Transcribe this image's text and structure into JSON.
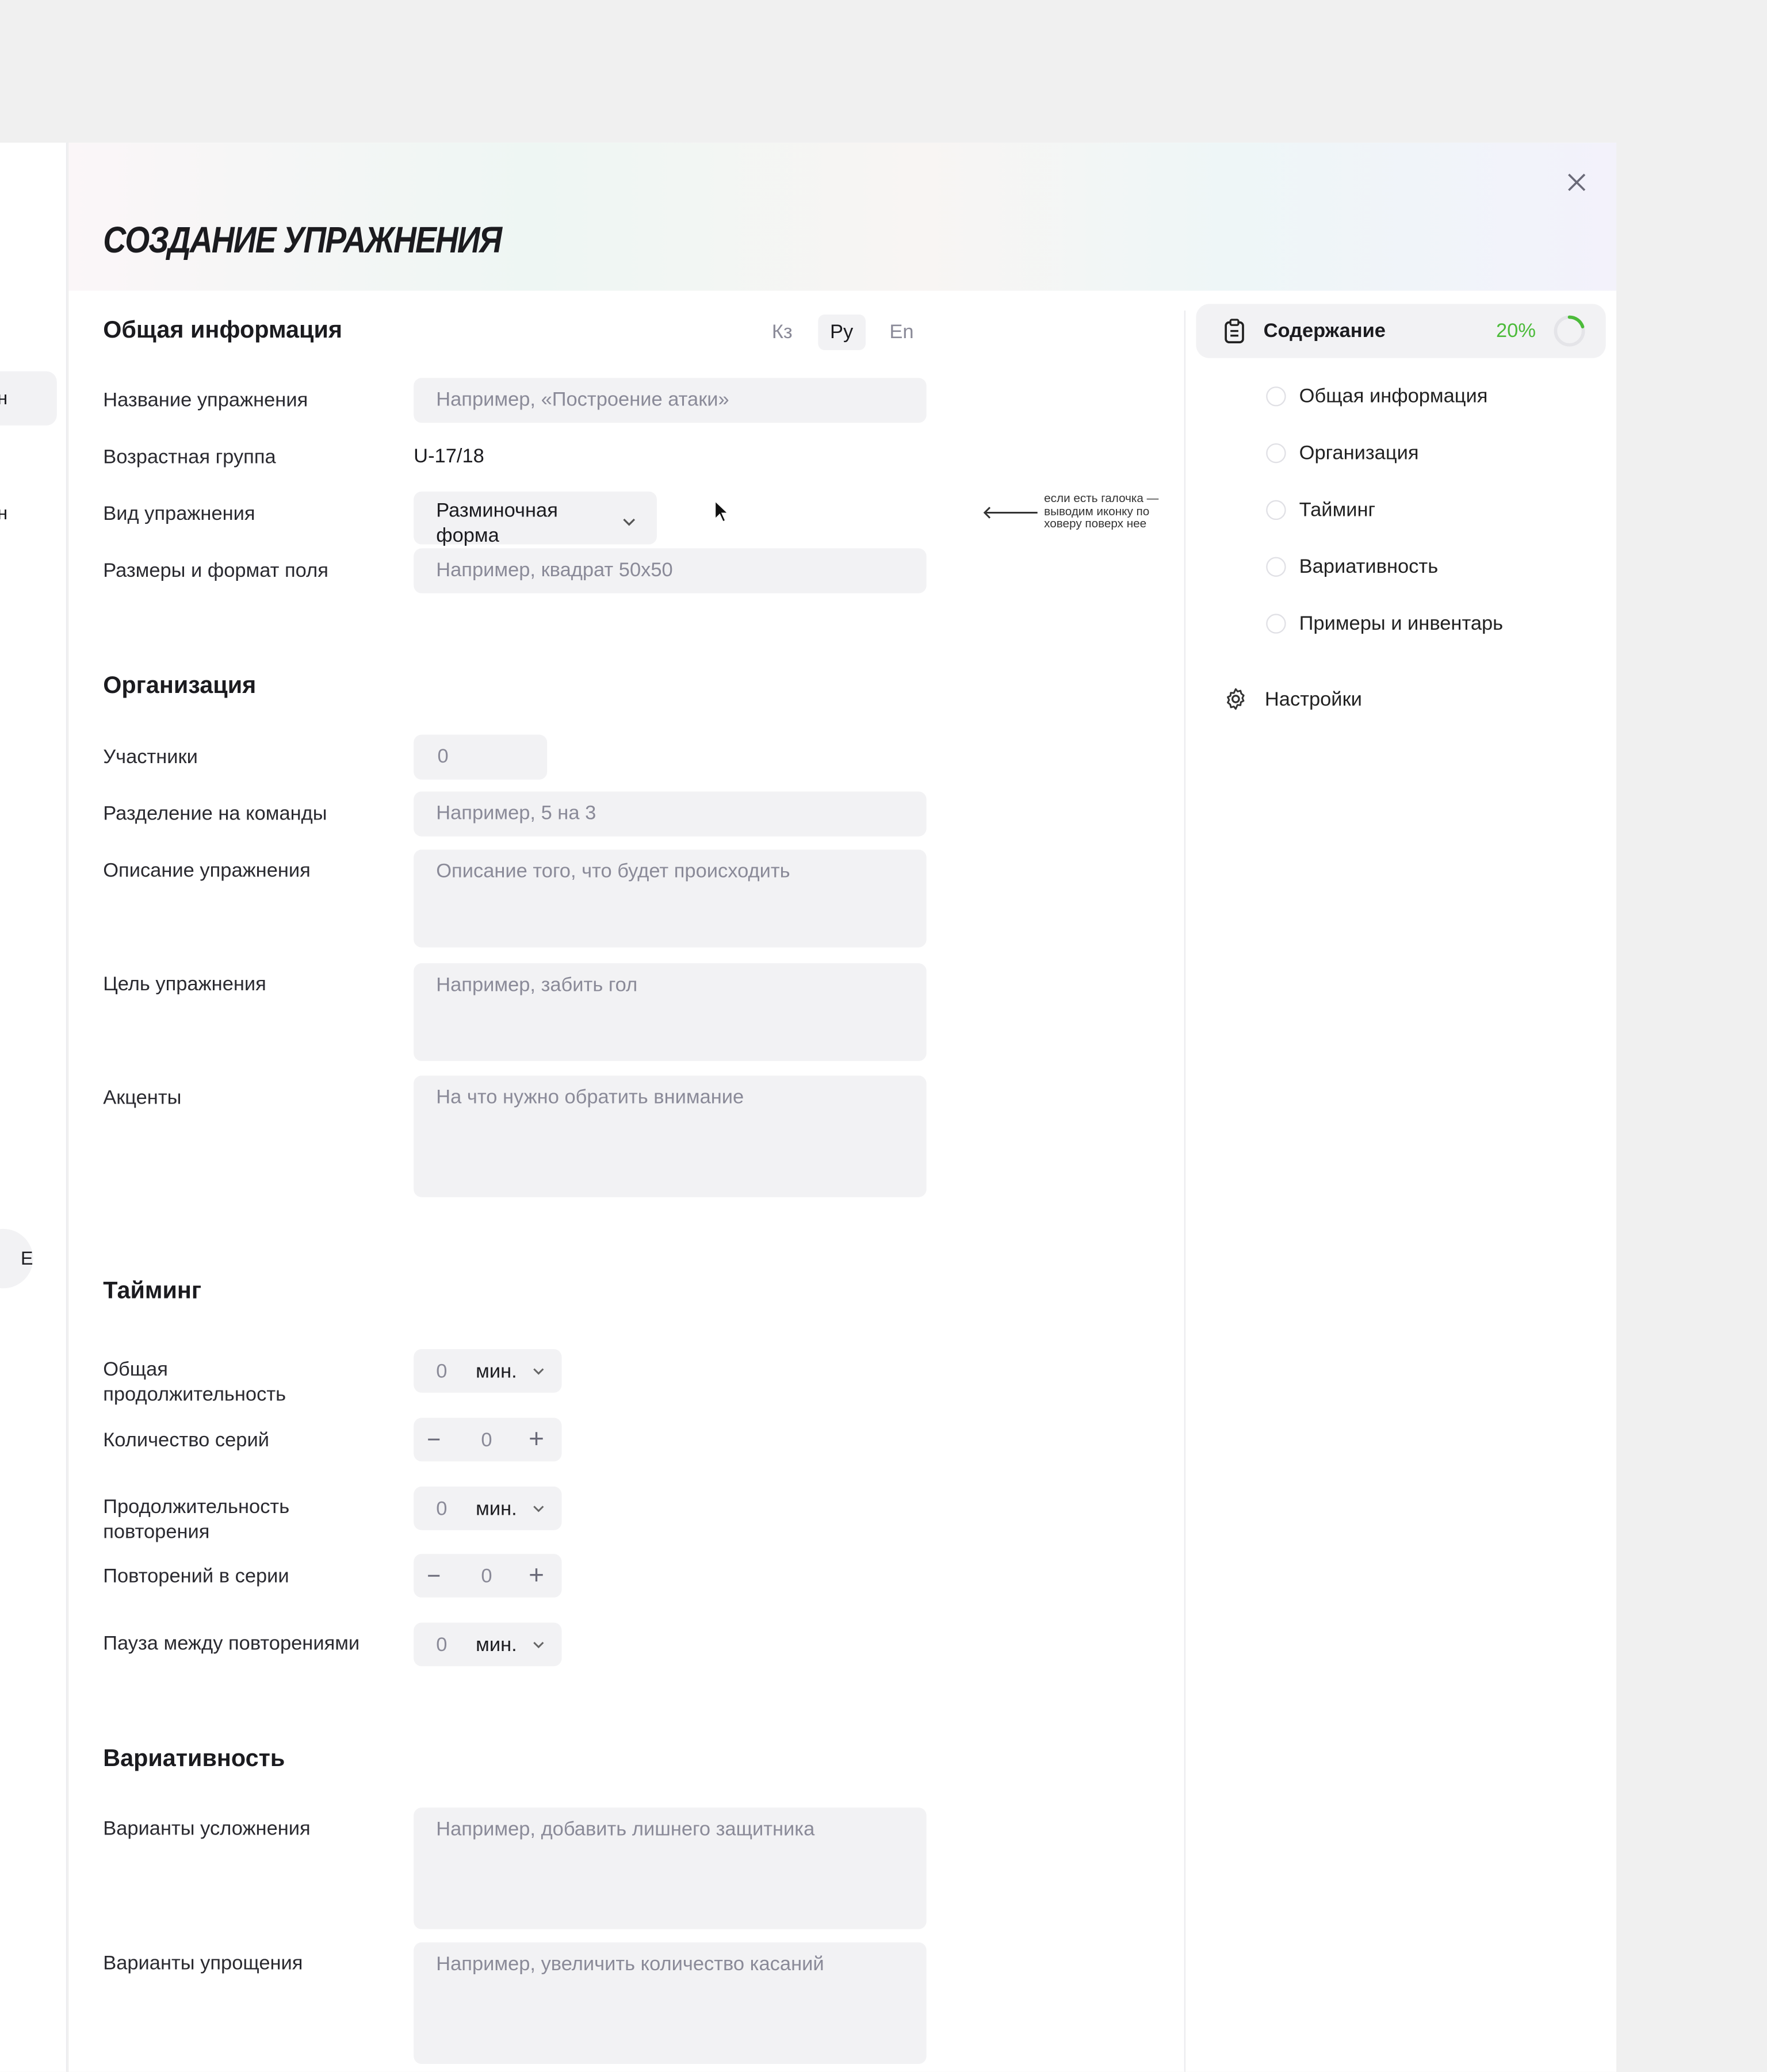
{
  "left_panel": {
    "item_fragment_1": "н",
    "item_fragment_2": "н",
    "pill_fragment": "Е"
  },
  "modal": {
    "title": "СОЗДАНИЕ УПРАЖНЕНИЯ",
    "close_icon": "close-icon",
    "languages": [
      {
        "label": "Кз",
        "selected": false
      },
      {
        "label": "Ру",
        "selected": true
      },
      {
        "label": "En",
        "selected": false
      }
    ],
    "general": {
      "heading": "Общая информация",
      "name_label": "Название упражнения",
      "name_placeholder": "Например, «Построение атаки»",
      "age_label": "Возрастная группа",
      "age_value": "U-17/18",
      "type_label": "Вид упражнения",
      "type_value_line1": "Разминочная",
      "type_value_line2": "форма",
      "field_label": "Размеры и формат поля",
      "field_placeholder": "Например, квадрат 50x50"
    },
    "annotation": "если есть галочка — выводим иконку по ховеру поверх нее",
    "organization": {
      "heading": "Организация",
      "participants_label": "Участники",
      "participants_value": "0",
      "teams_label": "Разделение на команды",
      "teams_placeholder": "Например, 5 на 3",
      "description_label": "Описание упражнения",
      "description_placeholder": "Описание того, что будет происходить",
      "goal_label": "Цель упражнения",
      "goal_placeholder": "Например, забить гол",
      "accents_label": "Акценты",
      "accents_placeholder": "На что нужно обратить внимание"
    },
    "timing": {
      "heading": "Тайминг",
      "total_label_1": "Общая",
      "total_label_2": "продолжительность",
      "total_value": "0",
      "total_unit": "мин.",
      "series_label": "Количество серий",
      "series_value": "0",
      "minus": "−",
      "plus": "+",
      "rep_duration_label_1": "Продолжительность",
      "rep_duration_label_2": "повторения",
      "rep_duration_value": "0",
      "rep_duration_unit": "мин.",
      "reps_label": "Повторений в серии",
      "reps_value": "0",
      "pause_label": "Пауза между повторениями",
      "pause_value": "0",
      "pause_unit": "мин."
    },
    "variability": {
      "heading": "Вариативность",
      "harder_label": "Варианты усложнения",
      "harder_placeholder": "Например, добавить лишнего защитника",
      "easier_label": "Варианты упрощения",
      "easier_placeholder": "Например, увеличить количество касаний"
    },
    "toc": {
      "title": "Содержание",
      "progress_label": "20%",
      "progress": 0.2,
      "accent": "#4cbb3a",
      "items": [
        "Общая информация",
        "Организация",
        "Тайминг",
        "Вариативность",
        "Примеры и инвентарь"
      ],
      "settings": "Настройки"
    }
  }
}
